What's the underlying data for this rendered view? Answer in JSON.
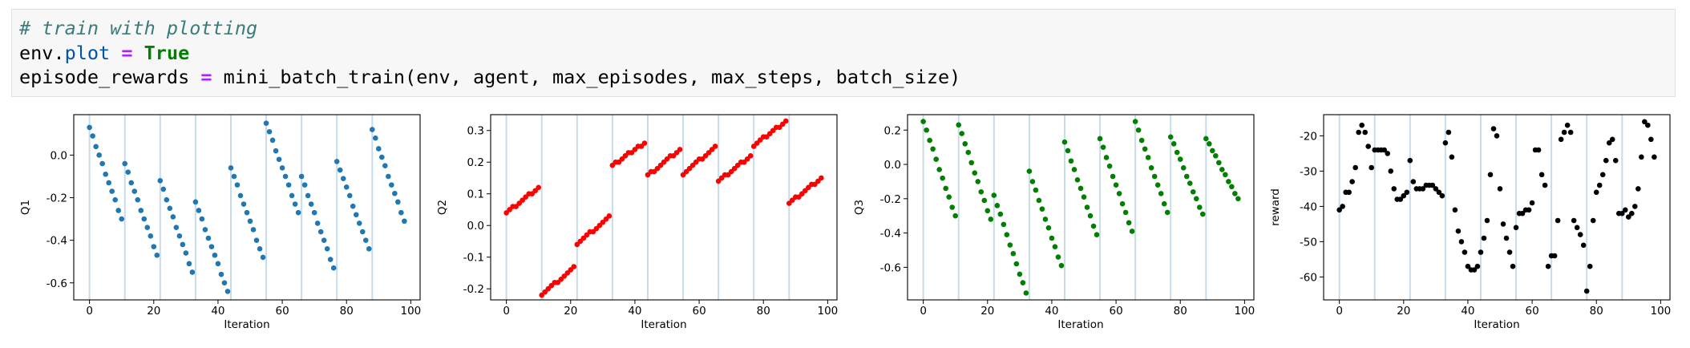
{
  "code": [
    [
      {
        "text": "# train with plotting",
        "color": "#3d7b7b",
        "style": "italic"
      }
    ],
    [
      {
        "text": "env.",
        "color": "#000000"
      },
      {
        "text": "plot",
        "color": "#0055aa"
      },
      {
        "text": " ",
        "color": "#000000"
      },
      {
        "text": "=",
        "color": "#aa22ff",
        "weight": "bold"
      },
      {
        "text": " ",
        "color": "#000000"
      },
      {
        "text": "True",
        "color": "#008000",
        "weight": "bold"
      }
    ],
    [
      {
        "text": "episode_rewards ",
        "color": "#000000"
      },
      {
        "text": "=",
        "color": "#aa22ff",
        "weight": "bold"
      },
      {
        "text": " mini_batch_train(env, agent, max_episodes, max_steps, batch_size)",
        "color": "#000000"
      }
    ]
  ],
  "chart_data": [
    {
      "type": "scatter",
      "xlabel": "Iteration",
      "ylabel": "Q1",
      "color": "#1f77b4",
      "x": [
        0,
        1,
        2,
        3,
        4,
        5,
        6,
        7,
        8,
        9,
        10,
        11,
        12,
        13,
        14,
        15,
        16,
        17,
        18,
        19,
        20,
        21,
        22,
        23,
        24,
        25,
        26,
        27,
        28,
        29,
        30,
        31,
        32,
        33,
        34,
        35,
        36,
        37,
        38,
        39,
        40,
        41,
        42,
        43,
        44,
        45,
        46,
        47,
        48,
        49,
        50,
        51,
        52,
        53,
        54,
        55,
        56,
        57,
        58,
        59,
        60,
        61,
        62,
        63,
        64,
        65,
        66,
        67,
        68,
        69,
        70,
        71,
        72,
        73,
        74,
        75,
        76,
        77,
        78,
        79,
        80,
        81,
        82,
        83,
        84,
        85,
        86,
        87,
        88,
        89,
        90,
        91,
        92,
        93,
        94,
        95,
        96,
        97,
        98
      ],
      "values": [
        0.13,
        0.09,
        0.04,
        0.0,
        -0.04,
        -0.09,
        -0.13,
        -0.17,
        -0.21,
        -0.26,
        -0.3,
        -0.04,
        -0.08,
        -0.13,
        -0.17,
        -0.21,
        -0.26,
        -0.3,
        -0.34,
        -0.38,
        -0.43,
        -0.47,
        -0.12,
        -0.16,
        -0.21,
        -0.25,
        -0.29,
        -0.34,
        -0.38,
        -0.42,
        -0.46,
        -0.51,
        -0.55,
        -0.22,
        -0.26,
        -0.3,
        -0.35,
        -0.39,
        -0.43,
        -0.47,
        -0.51,
        -0.56,
        -0.6,
        -0.64,
        -0.06,
        -0.1,
        -0.14,
        -0.19,
        -0.23,
        -0.27,
        -0.31,
        -0.35,
        -0.4,
        -0.44,
        -0.48,
        0.15,
        0.11,
        0.07,
        0.02,
        -0.02,
        -0.06,
        -0.1,
        -0.14,
        -0.19,
        -0.23,
        -0.27,
        -0.1,
        -0.14,
        -0.19,
        -0.23,
        -0.27,
        -0.32,
        -0.36,
        -0.4,
        -0.44,
        -0.49,
        -0.53,
        -0.03,
        -0.07,
        -0.11,
        -0.15,
        -0.19,
        -0.24,
        -0.28,
        -0.32,
        -0.36,
        -0.4,
        -0.44,
        0.12,
        0.08,
        0.03,
        -0.01,
        -0.05,
        -0.1,
        -0.14,
        -0.18,
        -0.22,
        -0.27,
        -0.31
      ],
      "vlines": [
        0,
        11,
        22,
        33,
        44,
        55,
        66,
        77,
        88
      ],
      "vline_color": "#c6dcec",
      "xlim": [
        -4.9,
        102.9
      ],
      "xticks": [
        0,
        20,
        40,
        60,
        80,
        100
      ],
      "ylim": [
        -0.68,
        0.19
      ],
      "yticks": [
        {
          "value": 0,
          "label": "0.0"
        },
        -0.2,
        -0.4,
        -0.6
      ]
    },
    {
      "type": "scatter",
      "xlabel": "Iteration",
      "ylabel": "Q2",
      "color": "#ff0000",
      "x": [
        0,
        1,
        2,
        3,
        4,
        5,
        6,
        7,
        8,
        9,
        10,
        11,
        12,
        13,
        14,
        15,
        16,
        17,
        18,
        19,
        20,
        21,
        22,
        23,
        24,
        25,
        26,
        27,
        28,
        29,
        30,
        31,
        32,
        33,
        34,
        35,
        36,
        37,
        38,
        39,
        40,
        41,
        42,
        43,
        44,
        45,
        46,
        47,
        48,
        49,
        50,
        51,
        52,
        53,
        54,
        55,
        56,
        57,
        58,
        59,
        60,
        61,
        62,
        63,
        64,
        65,
        66,
        67,
        68,
        69,
        70,
        71,
        72,
        73,
        74,
        75,
        76,
        77,
        78,
        79,
        80,
        81,
        82,
        83,
        84,
        85,
        86,
        87,
        88,
        89,
        90,
        91,
        92,
        93,
        94,
        95,
        96,
        97,
        98
      ],
      "values": [
        0.04,
        0.05,
        0.06,
        0.06,
        0.07,
        0.08,
        0.09,
        0.1,
        0.1,
        0.11,
        0.12,
        -0.22,
        -0.21,
        -0.2,
        -0.19,
        -0.18,
        -0.18,
        -0.17,
        -0.16,
        -0.15,
        -0.14,
        -0.13,
        -0.06,
        -0.05,
        -0.04,
        -0.03,
        -0.02,
        -0.02,
        -0.01,
        0.0,
        0.01,
        0.02,
        0.03,
        0.19,
        0.2,
        0.2,
        0.21,
        0.22,
        0.23,
        0.23,
        0.24,
        0.25,
        0.25,
        0.26,
        0.16,
        0.17,
        0.17,
        0.18,
        0.19,
        0.2,
        0.21,
        0.22,
        0.22,
        0.23,
        0.24,
        0.16,
        0.17,
        0.18,
        0.19,
        0.2,
        0.21,
        0.21,
        0.22,
        0.23,
        0.24,
        0.25,
        0.14,
        0.15,
        0.16,
        0.16,
        0.17,
        0.18,
        0.19,
        0.2,
        0.2,
        0.21,
        0.22,
        0.25,
        0.26,
        0.27,
        0.28,
        0.28,
        0.29,
        0.3,
        0.31,
        0.31,
        0.32,
        0.33,
        0.07,
        0.08,
        0.09,
        0.09,
        0.1,
        0.11,
        0.12,
        0.13,
        0.13,
        0.14,
        0.15
      ],
      "vlines": [
        0,
        11,
        22,
        33,
        44,
        55,
        66,
        77,
        88
      ],
      "vline_color": "#c6dcec",
      "xlim": [
        -4.9,
        102.9
      ],
      "xticks": [
        0,
        20,
        40,
        60,
        80,
        100
      ],
      "ylim": [
        -0.235,
        0.35
      ],
      "yticks": [
        -0.2,
        -0.1,
        {
          "value": 0,
          "label": "0.0"
        },
        0.1,
        0.2,
        0.3
      ]
    },
    {
      "type": "scatter",
      "xlabel": "Iteration",
      "ylabel": "Q3",
      "color": "#008000",
      "x": [
        0,
        1,
        2,
        3,
        4,
        5,
        6,
        7,
        8,
        9,
        10,
        11,
        12,
        13,
        14,
        15,
        16,
        17,
        18,
        19,
        20,
        21,
        22,
        23,
        24,
        25,
        26,
        27,
        28,
        29,
        30,
        31,
        32,
        33,
        34,
        35,
        36,
        37,
        38,
        39,
        40,
        41,
        42,
        43,
        44,
        45,
        46,
        47,
        48,
        49,
        50,
        51,
        52,
        53,
        54,
        55,
        56,
        57,
        58,
        59,
        60,
        61,
        62,
        63,
        64,
        65,
        66,
        67,
        68,
        69,
        70,
        71,
        72,
        73,
        74,
        75,
        76,
        77,
        78,
        79,
        80,
        81,
        82,
        83,
        84,
        85,
        86,
        87,
        88,
        89,
        90,
        91,
        92,
        93,
        94,
        95,
        96,
        97,
        98
      ],
      "values": [
        0.25,
        0.2,
        0.14,
        0.09,
        0.03,
        -0.03,
        -0.08,
        -0.14,
        -0.19,
        -0.25,
        -0.3,
        0.23,
        0.18,
        0.12,
        0.07,
        0.01,
        -0.05,
        -0.1,
        -0.16,
        -0.21,
        -0.27,
        -0.32,
        -0.18,
        -0.24,
        -0.29,
        -0.35,
        -0.41,
        -0.47,
        -0.52,
        -0.58,
        -0.64,
        -0.69,
        -0.75,
        -0.04,
        -0.1,
        -0.15,
        -0.21,
        -0.26,
        -0.32,
        -0.37,
        -0.43,
        -0.48,
        -0.54,
        -0.59,
        0.13,
        0.08,
        0.02,
        -0.03,
        -0.09,
        -0.14,
        -0.19,
        -0.25,
        -0.3,
        -0.36,
        -0.41,
        0.15,
        0.1,
        0.04,
        -0.01,
        -0.07,
        -0.12,
        -0.17,
        -0.23,
        -0.28,
        -0.34,
        -0.39,
        0.25,
        0.2,
        0.14,
        0.09,
        0.04,
        -0.02,
        -0.07,
        -0.12,
        -0.17,
        -0.23,
        -0.28,
        0.16,
        0.12,
        0.07,
        0.03,
        -0.02,
        -0.07,
        -0.11,
        -0.16,
        -0.2,
        -0.25,
        -0.29,
        0.15,
        0.12,
        0.08,
        0.05,
        0.01,
        -0.03,
        -0.06,
        -0.1,
        -0.13,
        -0.17,
        -0.2
      ],
      "vlines": [
        0,
        11,
        22,
        33,
        44,
        55,
        66,
        77,
        88
      ],
      "vline_color": "#c6dcec",
      "xlim": [
        -4.9,
        102.9
      ],
      "xticks": [
        0,
        20,
        40,
        60,
        80,
        100
      ],
      "ylim": [
        -0.79,
        0.29
      ],
      "yticks": [
        0.2,
        {
          "value": 0,
          "label": "0.0"
        },
        -0.2,
        -0.4,
        -0.6
      ]
    },
    {
      "type": "scatter",
      "xlabel": "Iteration",
      "ylabel": "reward",
      "color": "#000000",
      "x": [
        0,
        1,
        2,
        3,
        4,
        5,
        6,
        7,
        8,
        9,
        10,
        11,
        12,
        13,
        14,
        15,
        16,
        17,
        18,
        19,
        20,
        21,
        22,
        23,
        24,
        25,
        26,
        27,
        28,
        29,
        30,
        31,
        32,
        33,
        34,
        35,
        36,
        37,
        38,
        39,
        40,
        41,
        42,
        43,
        44,
        45,
        46,
        47,
        48,
        49,
        50,
        51,
        52,
        53,
        54,
        55,
        56,
        57,
        58,
        59,
        60,
        61,
        62,
        63,
        64,
        65,
        66,
        67,
        68,
        69,
        70,
        71,
        72,
        73,
        74,
        75,
        76,
        77,
        78,
        79,
        80,
        81,
        82,
        83,
        84,
        85,
        86,
        87,
        88,
        89,
        90,
        91,
        92,
        93,
        94,
        95,
        96,
        97,
        98
      ],
      "values": [
        -41,
        -40,
        -36,
        -36,
        -33,
        -29,
        -19,
        -17,
        -19,
        -23,
        -29,
        -24,
        -24,
        -24,
        -24,
        -25,
        -30,
        -35,
        -38,
        -38,
        -37,
        -36,
        -27,
        -33,
        -35,
        -35,
        -35,
        -34,
        -34,
        -34,
        -35,
        -36,
        -37,
        -22,
        -19,
        -26,
        -41,
        -47,
        -50,
        -53,
        -57,
        -58,
        -58,
        -57,
        -53,
        -49,
        -44,
        -31,
        -18,
        -20,
        -35,
        -45,
        -49,
        -53,
        -57,
        -46,
        -42,
        -42,
        -41,
        -41,
        -39,
        -24,
        -24,
        -31,
        -34,
        -57,
        -54,
        -54,
        -44,
        -21,
        -19,
        -17,
        -19,
        -44,
        -46,
        -48,
        -51,
        -64,
        -57,
        -44,
        -36,
        -34,
        -31,
        -27,
        -22,
        -21,
        -27,
        -42,
        -42,
        -41,
        -43,
        -42,
        -40,
        -35,
        -26,
        -16,
        -17,
        -21,
        -26
      ],
      "vlines": [
        0,
        11,
        22,
        33,
        44,
        55,
        66,
        77,
        88
      ],
      "vline_color": "#c6dcec",
      "xlim": [
        -4.9,
        102.9
      ],
      "xticks": [
        0,
        20,
        40,
        60,
        80,
        100
      ],
      "ylim": [
        -66.5,
        -14
      ],
      "yticks": [
        -20,
        -30,
        -40,
        -50,
        -60
      ]
    }
  ]
}
